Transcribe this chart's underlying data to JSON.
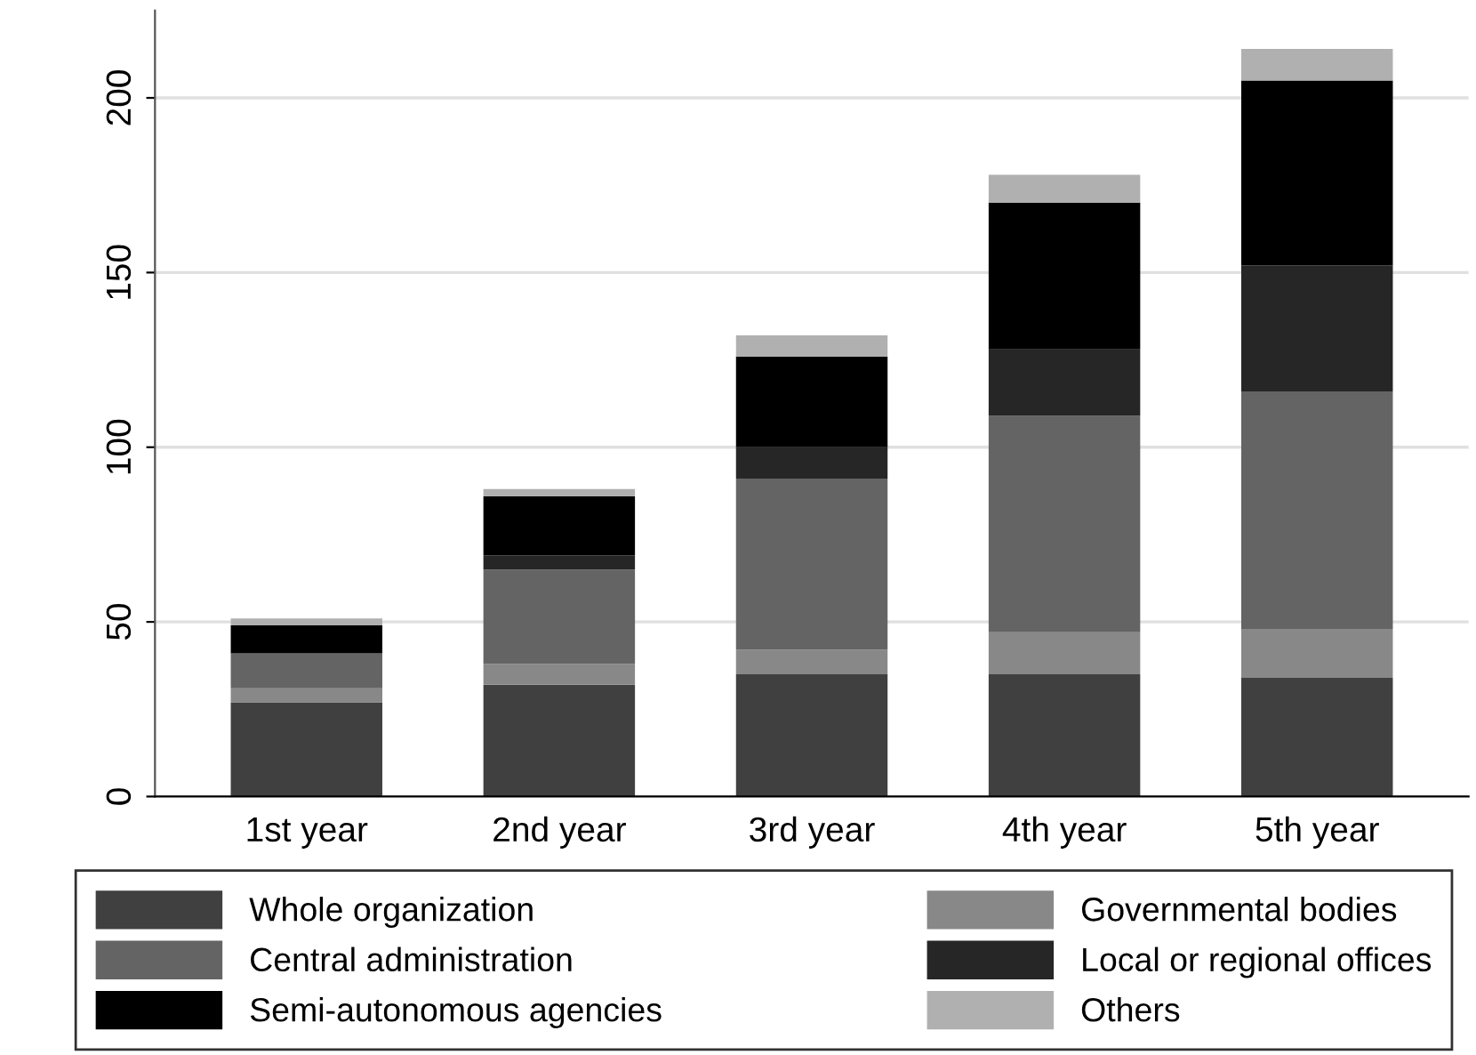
{
  "chart_data": {
    "type": "bar",
    "stacked": true,
    "categories": [
      "1st year",
      "2nd year",
      "3rd year",
      "4th year",
      "5th year"
    ],
    "series": [
      {
        "name": "Whole organization",
        "color": "#404040",
        "values": [
          27,
          32,
          35,
          35,
          34
        ]
      },
      {
        "name": "Governmental bodies",
        "color": "#888888",
        "values": [
          4,
          6,
          7,
          12,
          14
        ]
      },
      {
        "name": "Central administration",
        "color": "#646464",
        "values": [
          10,
          27,
          49,
          62,
          68
        ]
      },
      {
        "name": "Local or regional offices",
        "color": "#262626",
        "values": [
          0,
          4,
          9,
          19,
          36
        ]
      },
      {
        "name": "Semi-autonomous agencies",
        "color": "#000000",
        "values": [
          8,
          17,
          26,
          42,
          53
        ]
      },
      {
        "name": "Others",
        "color": "#b0b0b0",
        "values": [
          2,
          2,
          6,
          8,
          9
        ]
      }
    ],
    "ylim": [
      0,
      225
    ],
    "yticks": [
      0,
      50,
      100,
      150,
      200
    ],
    "grid": "y",
    "legend": "bottom"
  }
}
